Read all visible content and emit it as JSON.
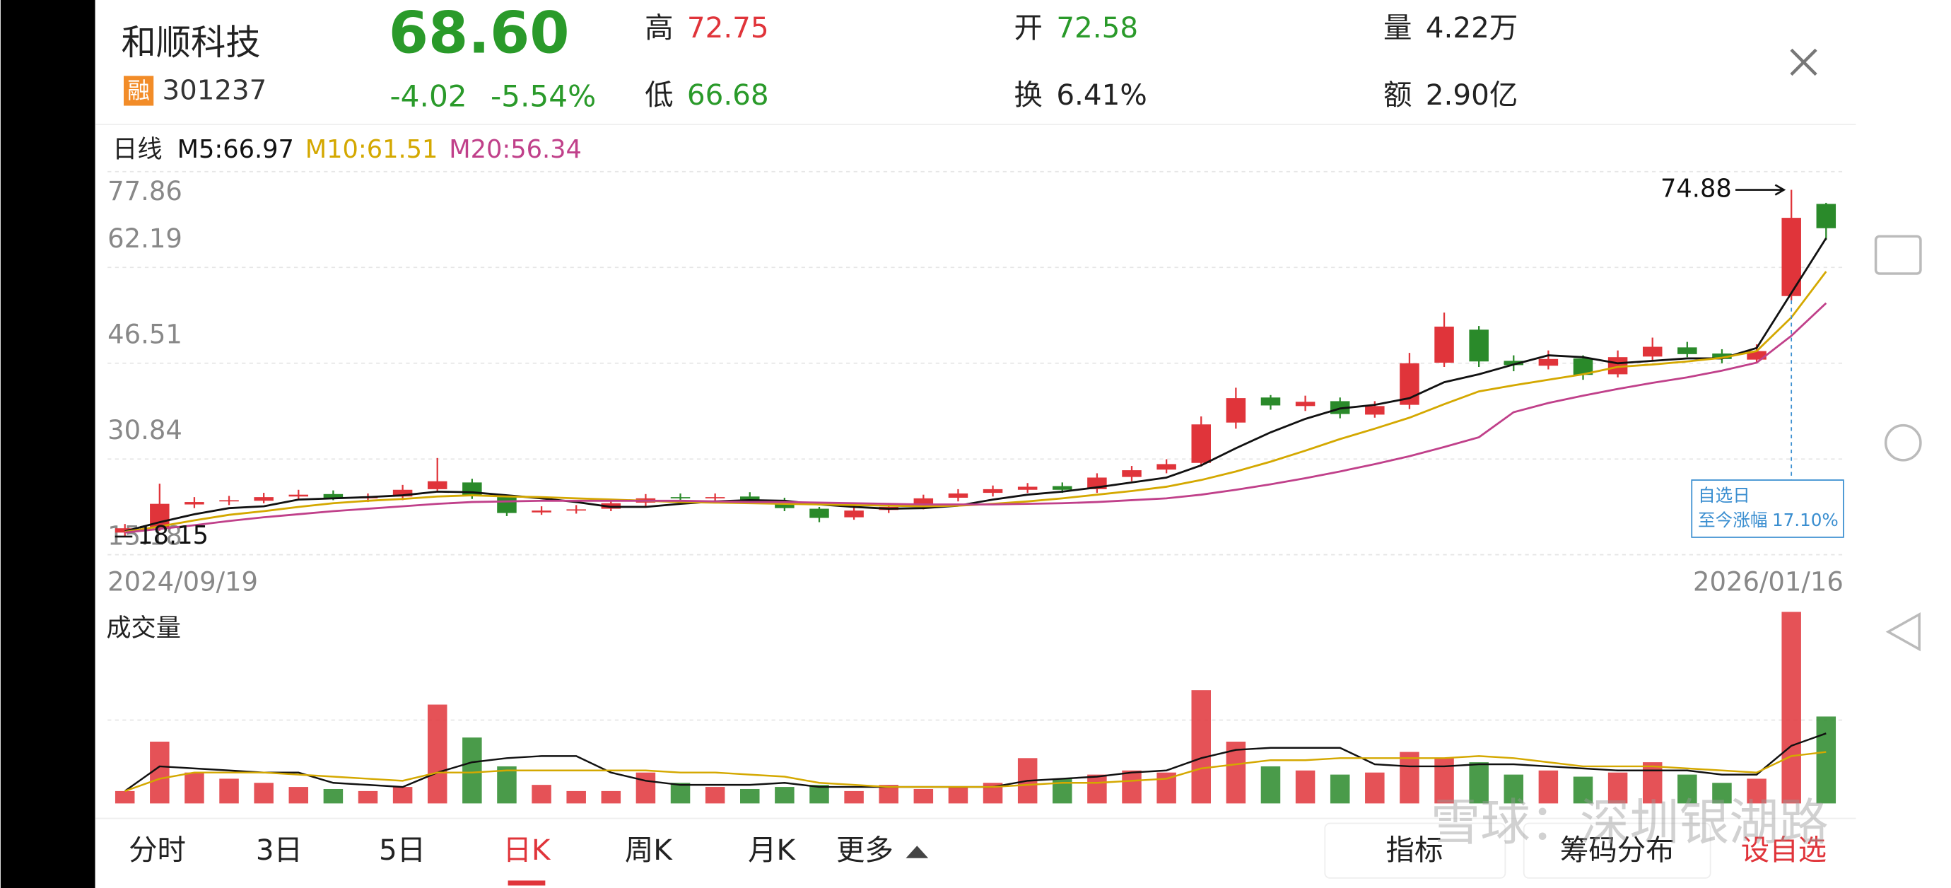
{
  "header": {
    "name": "和顺科技",
    "badge": "融",
    "code": "301237",
    "price": "68.60",
    "change": "-4.02",
    "change_pct": "-5.54%",
    "stats": [
      {
        "label": "高",
        "value": "72.75"
      },
      {
        "label": "低",
        "value": "66.68"
      },
      {
        "label": "开",
        "value": "72.58"
      },
      {
        "label": "换",
        "value": "6.41%"
      },
      {
        "label": "量",
        "value": "4.22万"
      },
      {
        "label": "额",
        "value": "2.90亿"
      }
    ]
  },
  "chart_data": {
    "type": "candlestick",
    "period_label": "日线",
    "x_start": "2024/09/19",
    "x_end": "2026/01/16",
    "ylim": [
      15.18,
      77.86
    ],
    "yticks": [
      15.18,
      30.84,
      46.51,
      62.19,
      77.86
    ],
    "grid": true,
    "up_color": "#e0343a",
    "down_color": "#2a8a2a",
    "open": [
      18.8,
      19.6,
      23.4,
      23.9,
      24.0,
      24.7,
      25.1,
      24.4,
      24.7,
      25.9,
      27.0,
      24.6,
      22.1,
      22.5,
      22.7,
      23.7,
      24.6,
      24.4,
      24.7,
      23.9,
      22.7,
      21.3,
      22.5,
      23.1,
      24.5,
      25.3,
      25.8,
      26.4,
      25.9,
      27.9,
      29.1,
      30.2,
      36.8,
      40.9,
      39.5,
      40.3,
      38.1,
      39.7,
      46.6,
      52.0,
      46.9,
      46.1,
      47.3,
      44.7,
      47.6,
      49.1,
      48.1,
      47.1,
      57.5,
      72.58
    ],
    "high": [
      20.2,
      26.8,
      24.6,
      24.8,
      25.3,
      25.8,
      25.7,
      25.2,
      26.6,
      31.0,
      27.6,
      24.9,
      23.1,
      23.3,
      24.3,
      25.1,
      25.2,
      25.2,
      25.4,
      24.5,
      23.0,
      23.0,
      23.6,
      25.0,
      25.9,
      26.5,
      26.9,
      27.0,
      28.5,
      29.7,
      30.8,
      37.8,
      42.5,
      41.3,
      41.2,
      40.9,
      40.3,
      48.2,
      54.8,
      52.6,
      47.8,
      48.6,
      47.8,
      48.6,
      50.7,
      50.0,
      48.8,
      49.6,
      74.88,
      72.75
    ],
    "low": [
      18.15,
      19.1,
      22.8,
      23.3,
      23.6,
      24.2,
      24.1,
      23.8,
      24.1,
      25.4,
      24.3,
      21.5,
      21.7,
      21.9,
      22.3,
      23.1,
      23.9,
      23.8,
      23.6,
      22.3,
      20.5,
      20.9,
      22.0,
      22.6,
      23.9,
      24.7,
      25.3,
      25.3,
      25.3,
      27.2,
      28.5,
      29.6,
      35.8,
      38.9,
      38.7,
      37.5,
      37.6,
      39.0,
      45.9,
      45.9,
      45.2,
      45.5,
      43.8,
      44.2,
      46.8,
      47.5,
      46.5,
      46.6,
      56.8,
      66.68
    ],
    "close": [
      19.5,
      23.5,
      23.8,
      24.1,
      24.6,
      25.0,
      24.5,
      24.6,
      25.8,
      27.2,
      24.8,
      22.0,
      22.4,
      22.6,
      23.6,
      24.4,
      24.5,
      24.6,
      24.0,
      22.8,
      21.2,
      22.4,
      23.0,
      24.4,
      25.2,
      25.9,
      26.3,
      25.8,
      27.8,
      29.0,
      30.0,
      36.5,
      40.8,
      39.6,
      40.2,
      38.2,
      39.5,
      46.5,
      52.5,
      46.8,
      46.2,
      47.2,
      44.6,
      47.5,
      49.2,
      48.0,
      47.2,
      48.5,
      70.3,
      68.6
    ],
    "series": [
      {
        "name": "M5:66.97",
        "color": "#111111",
        "values": [
          19.0,
          20.5,
          21.8,
          22.8,
          23.1,
          24.2,
          24.4,
          24.6,
          24.9,
          25.5,
          25.4,
          24.9,
          24.4,
          23.8,
          23.0,
          23.0,
          23.5,
          23.9,
          24.1,
          24.0,
          23.4,
          23.0,
          22.7,
          22.8,
          23.2,
          24.2,
          25.0,
          25.5,
          26.2,
          27.0,
          27.8,
          29.8,
          32.6,
          35.2,
          37.4,
          39.1,
          39.7,
          40.8,
          43.4,
          44.7,
          46.3,
          47.8,
          47.5,
          46.5,
          46.9,
          47.3,
          47.3,
          49.0,
          58.0,
          66.97
        ]
      },
      {
        "name": "M10:61.51",
        "color": "#d4a800",
        "values": [
          18.9,
          19.8,
          20.8,
          21.7,
          22.3,
          23.0,
          23.6,
          24.0,
          24.3,
          24.7,
          24.9,
          24.7,
          24.6,
          24.4,
          24.2,
          24.0,
          23.8,
          23.7,
          23.6,
          23.5,
          23.4,
          23.3,
          23.2,
          23.1,
          23.2,
          23.5,
          23.9,
          24.4,
          25.0,
          25.6,
          26.3,
          27.4,
          28.8,
          30.4,
          32.2,
          34.1,
          35.8,
          37.6,
          39.8,
          41.9,
          42.9,
          43.8,
          44.7,
          45.9,
          46.3,
          46.8,
          47.4,
          48.5,
          54.0,
          61.51
        ]
      },
      {
        "name": "M20:56.34",
        "color": "#c0408a",
        "values": [
          18.8,
          19.4,
          20.0,
          20.7,
          21.3,
          21.8,
          22.3,
          22.7,
          23.1,
          23.5,
          23.8,
          23.9,
          24.0,
          24.0,
          24.0,
          24.0,
          24.0,
          23.9,
          23.8,
          23.8,
          23.7,
          23.6,
          23.5,
          23.4,
          23.4,
          23.4,
          23.5,
          23.6,
          23.8,
          24.1,
          24.4,
          25.0,
          25.8,
          26.7,
          27.7,
          28.8,
          30.0,
          31.3,
          32.8,
          34.4,
          38.5,
          40.0,
          41.2,
          42.3,
          43.3,
          44.2,
          45.3,
          46.6,
          51.0,
          56.34
        ]
      }
    ],
    "tooltip": {
      "title": "自选日",
      "label": "至今涨幅",
      "value": "17.10%"
    },
    "volume": {
      "title": "成交量",
      "values": [
        0.6,
        3.0,
        1.5,
        1.2,
        1.0,
        0.8,
        0.7,
        0.6,
        0.8,
        4.8,
        3.2,
        1.8,
        0.9,
        0.6,
        0.6,
        1.5,
        1.0,
        0.8,
        0.7,
        0.8,
        0.9,
        0.6,
        0.9,
        0.7,
        0.8,
        1.0,
        2.2,
        1.2,
        1.4,
        1.6,
        1.5,
        5.5,
        3.0,
        1.8,
        1.6,
        1.4,
        1.5,
        2.5,
        2.2,
        2.0,
        1.4,
        1.6,
        1.3,
        1.5,
        2.0,
        1.4,
        1.0,
        1.2,
        9.3,
        4.22
      ],
      "series": [
        {
          "color": "#111111",
          "values": [
            0.6,
            1.8,
            1.7,
            1.6,
            1.5,
            1.5,
            1.0,
            0.9,
            0.8,
            1.5,
            2.0,
            2.2,
            2.3,
            2.3,
            1.5,
            1.1,
            0.9,
            0.9,
            0.9,
            1.0,
            0.8,
            0.8,
            0.8,
            0.8,
            0.8,
            0.8,
            1.1,
            1.2,
            1.3,
            1.5,
            1.6,
            2.2,
            2.6,
            2.7,
            2.7,
            2.7,
            1.9,
            1.8,
            1.8,
            1.9,
            1.9,
            1.8,
            1.7,
            1.6,
            1.6,
            1.6,
            1.4,
            1.4,
            2.8,
            3.4
          ]
        },
        {
          "color": "#d4a800",
          "values": [
            0.6,
            1.2,
            1.5,
            1.5,
            1.5,
            1.4,
            1.3,
            1.2,
            1.1,
            1.5,
            1.5,
            1.6,
            1.6,
            1.6,
            1.6,
            1.6,
            1.5,
            1.5,
            1.4,
            1.3,
            1.0,
            0.9,
            0.8,
            0.8,
            0.8,
            0.8,
            0.9,
            1.0,
            1.0,
            1.1,
            1.2,
            1.7,
            1.9,
            2.1,
            2.1,
            2.2,
            2.2,
            2.2,
            2.2,
            2.3,
            2.2,
            2.0,
            1.8,
            1.8,
            1.8,
            1.7,
            1.6,
            1.5,
            2.3,
            2.5
          ]
        }
      ]
    }
  },
  "tabs": [
    "分时",
    "3日",
    "5日",
    "日K",
    "周K",
    "月K",
    "更多"
  ],
  "buttons": [
    "指标",
    "筹码分布",
    "设自选"
  ],
  "watermark": "雪球：深圳银湖路"
}
